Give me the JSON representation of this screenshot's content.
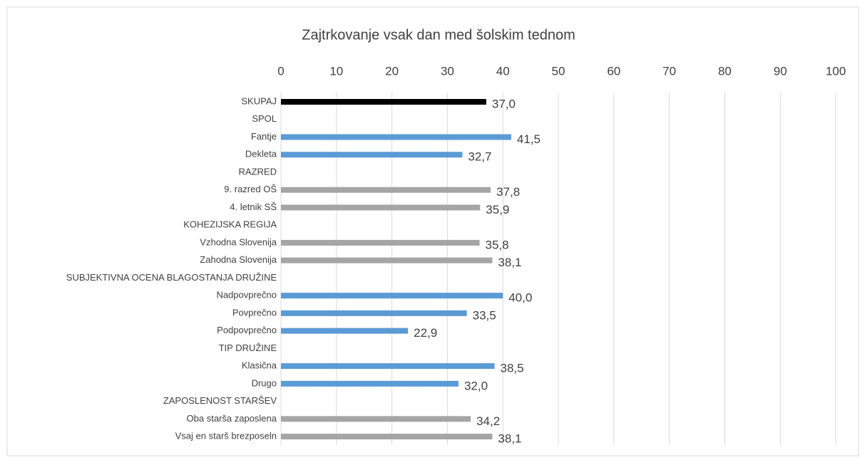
{
  "chart_data": {
    "type": "barh",
    "title": "Zajtrkovanje vsak dan med šolskim tednom",
    "categories": [
      "SKUPAJ",
      "SPOL",
      "Fantje",
      "Dekleta",
      "RAZRED",
      "9. razred OŠ",
      "4. letnik SŠ",
      "KOHEZIJSKA REGIJA",
      "Vzhodna Slovenija",
      "Zahodna Slovenija",
      "SUBJEKTIVNA OCENA BLAGOSTANJA DRUŽINE",
      "Nadpovprečno",
      "Povprečno",
      "Podpovprečno",
      "TIP DRUŽINE",
      "Klasična",
      "Drugo",
      "ZAPOSLENOST STARŠEV",
      "Oba starša zaposlena",
      "Vsaj en starš brezposeln"
    ],
    "values": [
      37.0,
      null,
      41.5,
      32.7,
      null,
      37.8,
      35.9,
      null,
      35.8,
      38.1,
      null,
      40.0,
      33.5,
      22.9,
      null,
      38.5,
      32.0,
      null,
      34.2,
      38.1
    ],
    "value_labels": [
      "37,0",
      null,
      "41,5",
      "32,7",
      null,
      "37,8",
      "35,9",
      null,
      "35,8",
      "38,1",
      null,
      "40,0",
      "33,5",
      "22,9",
      null,
      "38,5",
      "32,0",
      null,
      "34,2",
      "38,1"
    ],
    "colors": [
      "#000000",
      null,
      "#5b9bd5",
      "#5b9bd5",
      null,
      "#a5a5a5",
      "#a5a5a5",
      null,
      "#a5a5a5",
      "#a5a5a5",
      null,
      "#5b9bd5",
      "#5b9bd5",
      "#5b9bd5",
      null,
      "#5b9bd5",
      "#5b9bd5",
      null,
      "#a5a5a5",
      "#a5a5a5"
    ],
    "xlim": [
      0,
      100
    ],
    "xticks": [
      0,
      10,
      20,
      30,
      40,
      50,
      60,
      70,
      80,
      90,
      100
    ],
    "grid": true
  }
}
